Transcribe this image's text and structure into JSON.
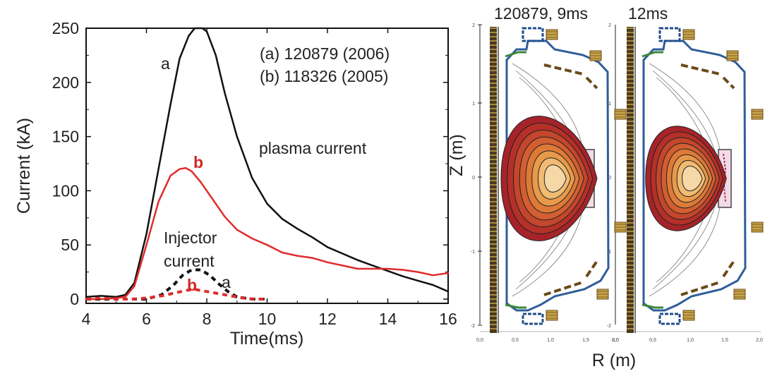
{
  "chart_data": [
    {
      "type": "line",
      "xlabel": "Time(ms)",
      "ylabel": "Current (kA)",
      "xlim": [
        4,
        16
      ],
      "ylim": [
        0,
        250
      ],
      "xticks": [
        4,
        6,
        8,
        10,
        12,
        14,
        16
      ],
      "yticks": [
        0,
        50,
        100,
        150,
        200,
        250
      ],
      "legend_text": [
        "(a) 120879 (2006)",
        "(b) 118326 (2005)"
      ],
      "annotations": {
        "plasma": "plasma current",
        "injector_line1": "Injector",
        "injector_line2": "current",
        "label_a": "a",
        "label_b": "b"
      },
      "series": [
        {
          "name": "a",
          "color": "#111111",
          "style": "solid",
          "x": [
            4.0,
            4.5,
            5.0,
            5.3,
            5.6,
            6.0,
            6.4,
            6.8,
            7.1,
            7.4,
            7.6,
            7.85,
            8.0,
            8.3,
            8.6,
            9.0,
            9.5,
            10.0,
            10.5,
            11.0,
            11.5,
            12.0,
            12.5,
            13.0,
            13.5,
            14.0,
            14.5,
            15.0,
            15.5,
            16.0
          ],
          "y": [
            2,
            3,
            2,
            4,
            15,
            60,
            120,
            180,
            222,
            243,
            250,
            250,
            247,
            225,
            190,
            150,
            112,
            88,
            74,
            65,
            57,
            48,
            42,
            36,
            31,
            26,
            21,
            17,
            13,
            7
          ]
        },
        {
          "name": "b",
          "color": "#e02b2b",
          "style": "solid",
          "x": [
            4.0,
            4.5,
            5.0,
            5.3,
            5.6,
            6.0,
            6.4,
            6.8,
            7.1,
            7.3,
            7.5,
            7.8,
            8.2,
            8.6,
            9.0,
            9.5,
            10.0,
            10.5,
            11.0,
            11.5,
            12.0,
            12.5,
            13.0,
            13.5,
            14.0,
            14.5,
            15.0,
            15.5,
            16.0
          ],
          "y": [
            0,
            0,
            1,
            2,
            12,
            50,
            90,
            114,
            120,
            121,
            118,
            108,
            92,
            76,
            64,
            56,
            50,
            43,
            40,
            38,
            34,
            31,
            28,
            28,
            28,
            27,
            25,
            22,
            24
          ]
        },
        {
          "name": "a",
          "color": "#111111",
          "style": "dashed",
          "x": [
            4.0,
            5.0,
            6.0,
            6.5,
            6.9,
            7.2,
            7.5,
            7.8,
            8.1,
            8.4,
            8.7,
            9.0,
            9.5,
            10.0
          ],
          "y": [
            0,
            0,
            0,
            4,
            13,
            22,
            27,
            27,
            22,
            14,
            7,
            2,
            0,
            0
          ]
        },
        {
          "name": "b",
          "color": "#e02b2b",
          "style": "dashed",
          "x": [
            4.0,
            4.5,
            5.0,
            5.5,
            6.0,
            6.5,
            7.0,
            7.3,
            7.6,
            8.0,
            8.4,
            8.8,
            9.2,
            9.6,
            10.0
          ],
          "y": [
            0,
            1,
            0,
            0,
            1,
            3,
            6,
            8,
            9,
            7,
            5,
            3,
            1,
            0,
            0
          ]
        }
      ]
    },
    {
      "type": "contour",
      "panels": [
        {
          "title": "120879, 9ms"
        },
        {
          "title": "12ms"
        }
      ],
      "xlabel": "R (m)",
      "ylabel": "Z (m)",
      "xticks": [
        "0,0",
        "0,5",
        "1,0",
        "1,5",
        "2,0"
      ],
      "yticks": [
        "2",
        "1",
        "0",
        "-1",
        "-2"
      ],
      "fill_colors": [
        "#a6232a",
        "#b53028",
        "#c4462c",
        "#d25e31",
        "#de7a38",
        "#e89a4a",
        "#f0bb72",
        "#f6d8a6"
      ]
    }
  ]
}
